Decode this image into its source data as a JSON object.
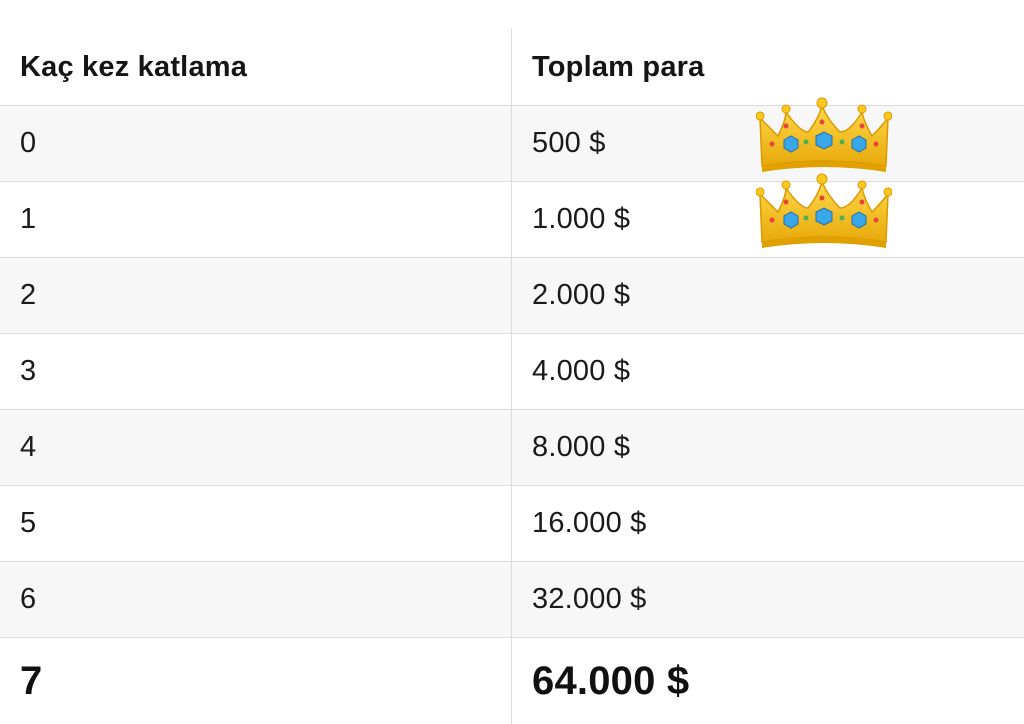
{
  "table": {
    "headers": [
      "Kaç kez katlama",
      "Toplam para"
    ],
    "rows": [
      [
        "0",
        "500 $"
      ],
      [
        "1",
        "1.000 $"
      ],
      [
        "2",
        "2.000 $"
      ],
      [
        "3",
        "4.000 $"
      ],
      [
        "4",
        "8.000 $"
      ],
      [
        "5",
        "16.000 $"
      ],
      [
        "6",
        "32.000 $"
      ],
      [
        "7",
        "64.000 $"
      ]
    ]
  },
  "decorations": {
    "crown_icon": "crown-emoji",
    "crown_colors": {
      "gold": "#f4c10f",
      "gold_dark": "#e0a800",
      "gem_blue": "#3aa7e8",
      "gem_red": "#e8433a",
      "gem_green": "#4cb050"
    }
  }
}
